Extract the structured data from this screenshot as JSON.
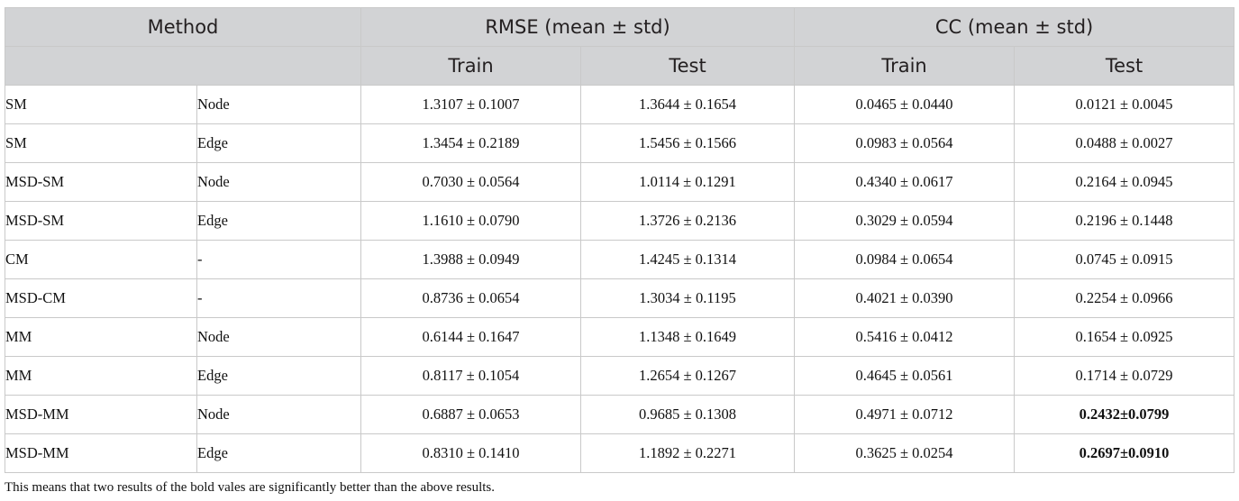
{
  "table": {
    "header": {
      "method": "Method",
      "rmse": "RMSE (mean ± std)",
      "cc": "CC (mean ± std)",
      "train": "Train",
      "test": "Test"
    },
    "rows": [
      {
        "method": "SM",
        "type": "Node",
        "rmse_train": "1.3107 ± 0.1007",
        "rmse_test": "1.3644 ± 0.1654",
        "cc_train": "0.0465 ± 0.0440",
        "cc_test": "0.0121 ± 0.0045"
      },
      {
        "method": "SM",
        "type": "Edge",
        "rmse_train": "1.3454 ± 0.2189",
        "rmse_test": "1.5456 ± 0.1566",
        "cc_train": "0.0983 ± 0.0564",
        "cc_test": "0.0488 ± 0.0027"
      },
      {
        "method": "MSD-SM",
        "type": "Node",
        "rmse_train": "0.7030 ± 0.0564",
        "rmse_test": "1.0114 ± 0.1291",
        "cc_train": "0.4340 ± 0.0617",
        "cc_test": "0.2164 ± 0.0945"
      },
      {
        "method": "MSD-SM",
        "type": "Edge",
        "rmse_train": "1.1610 ± 0.0790",
        "rmse_test": "1.3726 ± 0.2136",
        "cc_train": "0.3029 ± 0.0594",
        "cc_test": "0.2196 ± 0.1448"
      },
      {
        "method": "CM",
        "type": "-",
        "rmse_train": "1.3988 ± 0.0949",
        "rmse_test": "1.4245 ± 0.1314",
        "cc_train": "0.0984 ± 0.0654",
        "cc_test": "0.0745 ± 0.0915"
      },
      {
        "method": "MSD-CM",
        "type": "-",
        "rmse_train": "0.8736 ± 0.0654",
        "rmse_test": "1.3034 ± 0.1195",
        "cc_train": "0.4021 ± 0.0390",
        "cc_test": "0.2254 ± 0.0966"
      },
      {
        "method": "MM",
        "type": "Node",
        "rmse_train": "0.6144 ± 0.1647",
        "rmse_test": "1.1348 ± 0.1649",
        "cc_train": "0.5416 ± 0.0412",
        "cc_test": "0.1654 ± 0.0925"
      },
      {
        "method": "MM",
        "type": "Edge",
        "rmse_train": "0.8117 ± 0.1054",
        "rmse_test": "1.2654 ± 0.1267",
        "cc_train": "0.4645 ± 0.0561",
        "cc_test": "0.1714 ± 0.0729"
      },
      {
        "method": "MSD-MM",
        "type": "Node",
        "rmse_train": "0.6887 ± 0.0653",
        "rmse_test": "0.9685 ± 0.1308",
        "cc_train": "0.4971 ± 0.0712",
        "cc_test": "0.2432±0.0799"
      },
      {
        "method": "MSD-MM",
        "type": "Edge",
        "rmse_train": "0.8310 ± 0.1410",
        "rmse_test": "1.1892 ± 0.2271",
        "cc_train": "0.3625 ± 0.0254",
        "cc_test": "0.2697±0.0910"
      }
    ]
  },
  "footnote": "This means that two results of the bold vales are significantly better than the above results."
}
